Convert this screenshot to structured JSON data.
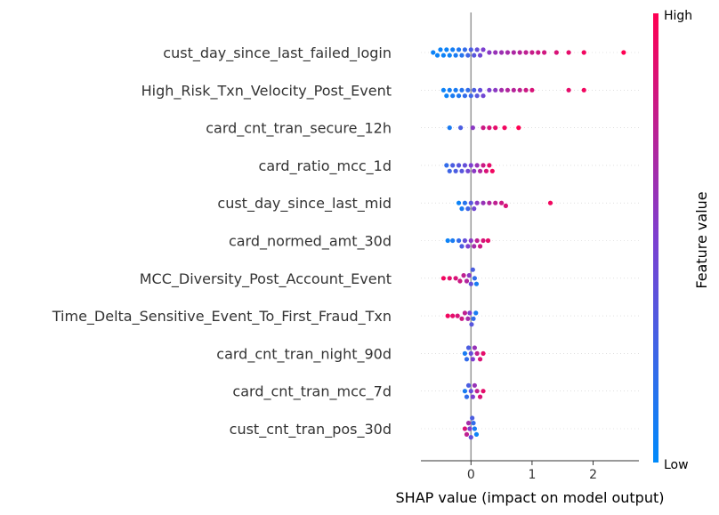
{
  "chart_data": {
    "type": "scatter",
    "subtype": "shap-beeswarm",
    "title": "",
    "xlabel": "SHAP value (impact on model output)",
    "ylabel": "",
    "xlim": [
      -0.82,
      2.75
    ],
    "xticks": [
      0,
      1,
      2
    ],
    "grid": false,
    "zero_line": true,
    "colorbar": {
      "label": "Feature value",
      "high_label": "High",
      "low_label": "Low",
      "low_color": "#008afb",
      "mid_color": "#7d3fd0",
      "high_color": "#ff0052"
    },
    "features": [
      {
        "name": "cust_day_since_last_failed_login",
        "points": [
          [
            -0.62,
            0.05
          ],
          [
            -0.55,
            0.05
          ],
          [
            -0.5,
            0.05
          ],
          [
            -0.45,
            0.05
          ],
          [
            -0.4,
            0.05
          ],
          [
            -0.35,
            0.05
          ],
          [
            -0.3,
            0.08
          ],
          [
            -0.25,
            0.1
          ],
          [
            -0.2,
            0.12
          ],
          [
            -0.15,
            0.15
          ],
          [
            -0.1,
            0.2
          ],
          [
            -0.05,
            0.25
          ],
          [
            0.0,
            0.3
          ],
          [
            0.05,
            0.35
          ],
          [
            0.1,
            0.4
          ],
          [
            0.15,
            0.45
          ],
          [
            0.2,
            0.5
          ],
          [
            0.3,
            0.55
          ],
          [
            0.4,
            0.6
          ],
          [
            0.5,
            0.62
          ],
          [
            0.6,
            0.65
          ],
          [
            0.7,
            0.68
          ],
          [
            0.8,
            0.72
          ],
          [
            0.9,
            0.75
          ],
          [
            1.0,
            0.78
          ],
          [
            1.1,
            0.8
          ],
          [
            1.2,
            0.82
          ],
          [
            1.4,
            0.85
          ],
          [
            1.6,
            0.9
          ],
          [
            1.85,
            0.95
          ],
          [
            2.5,
            1.0
          ]
        ]
      },
      {
        "name": "High_Risk_Txn_Velocity_Post_Event",
        "points": [
          [
            -0.45,
            0.05
          ],
          [
            -0.4,
            0.05
          ],
          [
            -0.35,
            0.08
          ],
          [
            -0.3,
            0.1
          ],
          [
            -0.25,
            0.1
          ],
          [
            -0.2,
            0.12
          ],
          [
            -0.15,
            0.15
          ],
          [
            -0.1,
            0.2
          ],
          [
            -0.05,
            0.2
          ],
          [
            0.0,
            0.25
          ],
          [
            0.05,
            0.3
          ],
          [
            0.1,
            0.35
          ],
          [
            0.15,
            0.4
          ],
          [
            0.2,
            0.45
          ],
          [
            0.3,
            0.5
          ],
          [
            0.4,
            0.55
          ],
          [
            0.5,
            0.65
          ],
          [
            0.6,
            0.7
          ],
          [
            0.7,
            0.72
          ],
          [
            0.8,
            0.75
          ],
          [
            0.9,
            0.8
          ],
          [
            1.0,
            0.85
          ],
          [
            1.6,
            0.9
          ],
          [
            1.85,
            0.95
          ]
        ]
      },
      {
        "name": "card_cnt_tran_secure_12h",
        "points": [
          [
            -0.35,
            0.1
          ],
          [
            -0.17,
            0.3
          ],
          [
            0.03,
            0.55
          ],
          [
            0.2,
            0.8
          ],
          [
            0.3,
            0.85
          ],
          [
            0.4,
            0.9
          ],
          [
            0.55,
            0.95
          ],
          [
            0.78,
            1.0
          ]
        ]
      },
      {
        "name": "card_ratio_mcc_1d",
        "points": [
          [
            -0.4,
            0.2
          ],
          [
            -0.35,
            0.25
          ],
          [
            -0.3,
            0.3
          ],
          [
            -0.25,
            0.3
          ],
          [
            -0.2,
            0.35
          ],
          [
            -0.15,
            0.35
          ],
          [
            -0.1,
            0.4
          ],
          [
            -0.05,
            0.45
          ],
          [
            0.0,
            0.5
          ],
          [
            0.05,
            0.55
          ],
          [
            0.1,
            0.6
          ],
          [
            0.15,
            0.7
          ],
          [
            0.2,
            0.8
          ],
          [
            0.25,
            0.85
          ],
          [
            0.3,
            0.9
          ],
          [
            0.35,
            0.95
          ]
        ]
      },
      {
        "name": "cust_day_since_last_mid",
        "points": [
          [
            -0.2,
            0.05
          ],
          [
            -0.15,
            0.1
          ],
          [
            -0.1,
            0.15
          ],
          [
            -0.05,
            0.25
          ],
          [
            0.0,
            0.35
          ],
          [
            0.05,
            0.45
          ],
          [
            0.1,
            0.55
          ],
          [
            0.2,
            0.6
          ],
          [
            0.3,
            0.7
          ],
          [
            0.4,
            0.75
          ],
          [
            0.5,
            0.8
          ],
          [
            0.57,
            0.85
          ],
          [
            1.3,
            0.95
          ]
        ]
      },
      {
        "name": "card_normed_amt_30d",
        "points": [
          [
            -0.38,
            0.05
          ],
          [
            -0.3,
            0.1
          ],
          [
            -0.2,
            0.2
          ],
          [
            -0.15,
            0.3
          ],
          [
            -0.1,
            0.4
          ],
          [
            -0.05,
            0.5
          ],
          [
            0.0,
            0.55
          ],
          [
            0.05,
            0.65
          ],
          [
            0.1,
            0.75
          ],
          [
            0.15,
            0.8
          ],
          [
            0.2,
            0.85
          ],
          [
            0.28,
            0.9
          ]
        ]
      },
      {
        "name": "MCC_Diversity_Post_Account_Event",
        "points": [
          [
            -0.45,
            0.95
          ],
          [
            -0.35,
            0.9
          ],
          [
            -0.25,
            0.85
          ],
          [
            -0.18,
            0.8
          ],
          [
            -0.12,
            0.75
          ],
          [
            -0.07,
            0.7
          ],
          [
            -0.03,
            0.55
          ],
          [
            0.0,
            0.4
          ],
          [
            0.03,
            0.3
          ],
          [
            0.06,
            0.2
          ],
          [
            0.09,
            0.1
          ]
        ]
      },
      {
        "name": "Time_Delta_Sensitive_Event_To_First_Fraud_Txn",
        "points": [
          [
            -0.38,
            0.95
          ],
          [
            -0.3,
            0.9
          ],
          [
            -0.22,
            0.85
          ],
          [
            -0.15,
            0.8
          ],
          [
            -0.1,
            0.75
          ],
          [
            -0.05,
            0.65
          ],
          [
            -0.02,
            0.5
          ],
          [
            0.01,
            0.35
          ],
          [
            0.04,
            0.2
          ],
          [
            0.08,
            0.1
          ]
        ]
      },
      {
        "name": "card_cnt_tran_night_90d",
        "points": [
          [
            -0.1,
            0.1
          ],
          [
            -0.07,
            0.2
          ],
          [
            -0.04,
            0.3
          ],
          [
            0.0,
            0.4
          ],
          [
            0.03,
            0.5
          ],
          [
            0.06,
            0.6
          ],
          [
            0.1,
            0.75
          ],
          [
            0.15,
            0.85
          ],
          [
            0.2,
            0.9
          ]
        ]
      },
      {
        "name": "card_cnt_tran_mcc_7d",
        "points": [
          [
            -0.1,
            0.1
          ],
          [
            -0.07,
            0.2
          ],
          [
            -0.04,
            0.3
          ],
          [
            0.0,
            0.4
          ],
          [
            0.03,
            0.5
          ],
          [
            0.06,
            0.6
          ],
          [
            0.1,
            0.75
          ],
          [
            0.15,
            0.85
          ],
          [
            0.2,
            0.9
          ]
        ]
      },
      {
        "name": "cust_cnt_tran_pos_30d",
        "points": [
          [
            -0.1,
            0.85
          ],
          [
            -0.07,
            0.75
          ],
          [
            -0.04,
            0.65
          ],
          [
            -0.02,
            0.5
          ],
          [
            0.0,
            0.4
          ],
          [
            0.02,
            0.3
          ],
          [
            0.04,
            0.2
          ],
          [
            0.06,
            0.1
          ],
          [
            0.09,
            0.05
          ]
        ]
      }
    ]
  }
}
